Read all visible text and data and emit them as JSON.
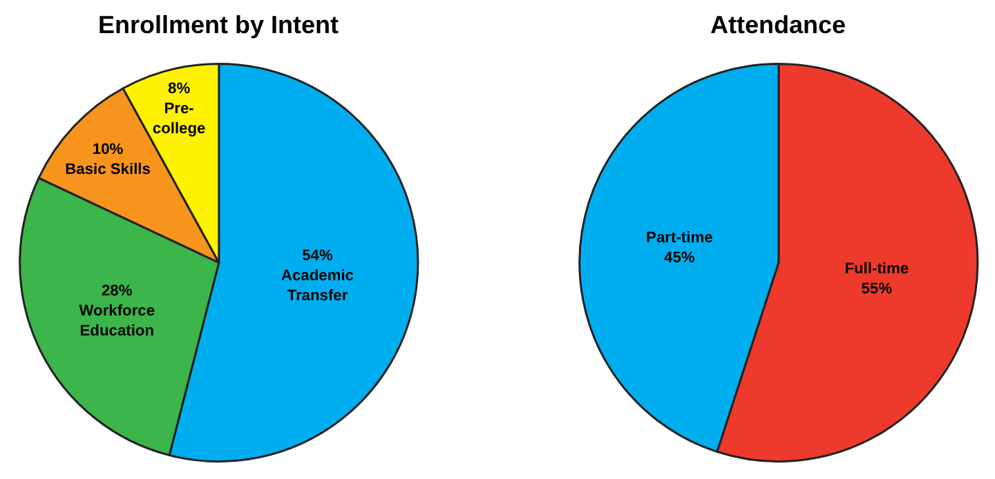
{
  "chart_data": [
    {
      "type": "pie",
      "title": "Enrollment by Intent",
      "categories": [
        "Academic Transfer",
        "Workforce Education",
        "Basic Skills",
        "Pre-college"
      ],
      "values": [
        54,
        28,
        10,
        8
      ],
      "value_labels": [
        "54%",
        "28%",
        "10%",
        "8%"
      ],
      "colors": [
        "#00aeef",
        "#3cb54a",
        "#f7941d",
        "#fff200"
      ],
      "legend": false
    },
    {
      "type": "pie",
      "title": "Attendance",
      "categories": [
        "Full-time",
        "Part-time"
      ],
      "values": [
        55,
        45
      ],
      "value_labels": [
        "55%",
        "45%"
      ],
      "colors": [
        "#ee3a2c",
        "#00aeef"
      ],
      "legend": false
    }
  ]
}
